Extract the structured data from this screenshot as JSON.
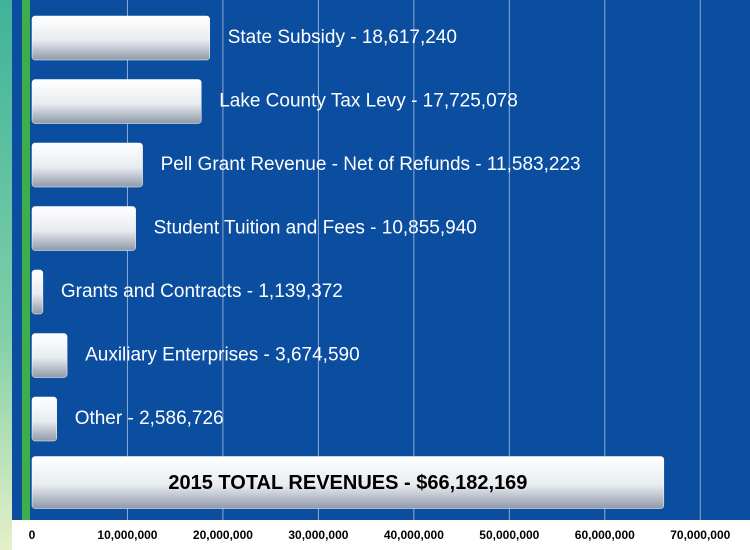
{
  "chart_data": {
    "type": "barh",
    "categories": [
      "State Subsidy - 18,617,240",
      "Lake County Tax Levy - 17,725,078",
      "Pell Grant Revenue - Net of Refunds - 11,583,223",
      "Student Tuition and Fees - 10,855,940",
      "Grants and Contracts - 1,139,372",
      "Auxiliary Enterprises - 3,674,590",
      "Other - 2,586,726",
      "2015 TOTAL REVENUES - $66,182,169"
    ],
    "values": [
      18617240,
      17725078,
      11583223,
      10855940,
      1139372,
      3674590,
      2586726,
      66182169
    ],
    "xlim": [
      0,
      75000000
    ],
    "xticks": [
      0,
      {
        "value": 10000000,
        "label": "10,000,000"
      },
      {
        "value": 20000000,
        "label": "20,000,000"
      },
      {
        "value": 30000000,
        "label": "30,000,000"
      },
      {
        "value": 40000000,
        "label": "40,000,000"
      },
      {
        "value": 50000000,
        "label": "50,000,000"
      },
      {
        "value": 60000000,
        "label": "60,000,000"
      },
      {
        "value": 70000000,
        "label": "70,000,000"
      }
    ],
    "grid": true,
    "color": "#ffffff"
  }
}
